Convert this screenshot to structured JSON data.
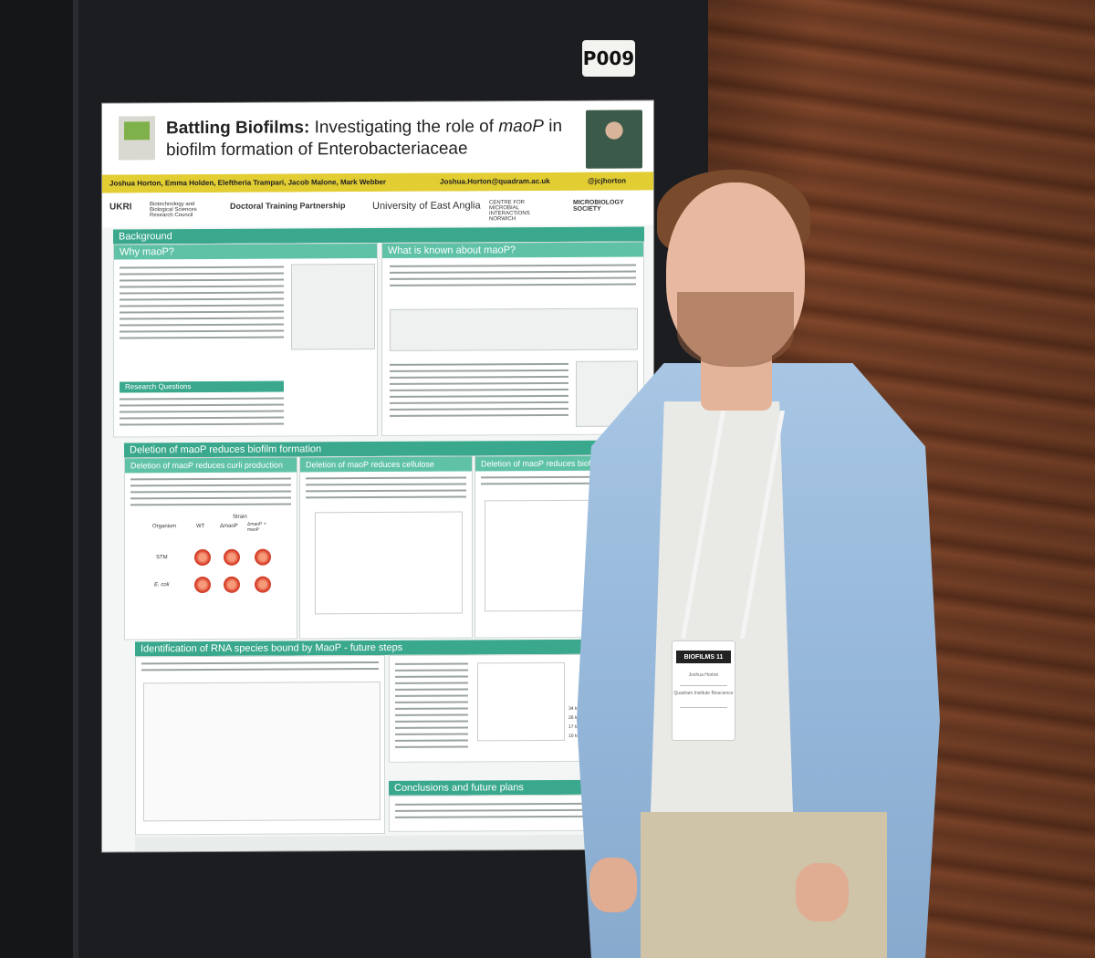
{
  "scene": {
    "poster_id": "P009",
    "poster": {
      "title_bold": "Battling Biofilms:",
      "title_rest": "Investigating the role of",
      "title_gene": "maoP",
      "title_tail": "in biofilm formation of Enterobacteriaceae",
      "authors": "Joshua Horton, Emma Holden, Eleftheria Trampari, Jacob Malone, Mark Webber",
      "email": "Joshua.Horton@quadram.ac.uk",
      "handle": "@jcjhorton",
      "logos": [
        "UKRI",
        "Biotechnology and Biological Sciences Research Council",
        "Doctoral Training Partnership",
        "University of East Anglia",
        "CENTRE FOR MICROBIAL INTERACTIONS NORWICH",
        "MICROBIOLOGY SOCIETY"
      ],
      "sections": {
        "background": "Background",
        "why": "Why maoP?",
        "known": "What is known about maoP?",
        "deletion": "Deletion of maoP reduces biofilm formation",
        "curli": "Deletion of maoP reduces curli production",
        "cellulose": "Deletion of maoP reduces cellulose production",
        "biomass": "Deletion of maoP reduces biofilm biom",
        "rna": "Identification of RNA species bound by MaoP - future steps",
        "conclusions": "Conclusions and future plans",
        "research_q": "Research Questions"
      },
      "table": {
        "header": "Strain",
        "col1": "Organism",
        "col2": "WT",
        "col3": "ΔmaoP",
        "col4": "ΔmaoP + maoP",
        "row1": "STM",
        "row2": "E. coli"
      },
      "gel_labels": [
        "34 kDa",
        "26 kDa",
        "17 kDa",
        "10 kDa"
      ]
    },
    "badge": {
      "title": "BIOFILMS 11",
      "name": "Joshua Horton",
      "org": "Quadram Institute Bioscience"
    }
  }
}
